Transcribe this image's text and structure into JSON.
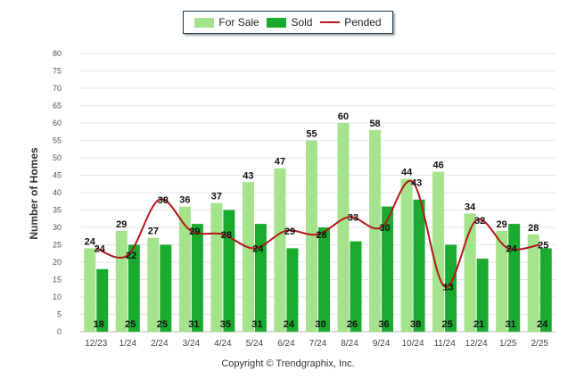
{
  "chart_data": {
    "type": "bar",
    "categories": [
      "12/23",
      "1/24",
      "2/24",
      "3/24",
      "4/24",
      "5/24",
      "6/24",
      "7/24",
      "8/24",
      "9/24",
      "10/24",
      "11/24",
      "12/24",
      "1/25",
      "2/25"
    ],
    "series": [
      {
        "name": "For Sale",
        "type": "bar",
        "color": "#a4e28b",
        "values": [
          24,
          29,
          27,
          36,
          37,
          43,
          47,
          55,
          60,
          58,
          44,
          46,
          34,
          29,
          28
        ]
      },
      {
        "name": "Sold",
        "type": "bar",
        "color": "#1aab2e",
        "values": [
          18,
          25,
          25,
          31,
          35,
          31,
          24,
          30,
          26,
          36,
          38,
          25,
          21,
          31,
          24
        ]
      },
      {
        "name": "Pended",
        "type": "line",
        "color": "#b5161b",
        "values": [
          24,
          22,
          38,
          29,
          28,
          24,
          29,
          28,
          33,
          30,
          43,
          13,
          32,
          24,
          25
        ]
      }
    ],
    "ylabel": "Number of Homes",
    "xlabel": "",
    "ylim": [
      0,
      80
    ],
    "yticks": [
      0,
      5,
      10,
      15,
      20,
      25,
      30,
      35,
      40,
      45,
      50,
      55,
      60,
      65,
      70,
      75,
      80
    ],
    "grid": true,
    "legend_position": "top-center"
  },
  "legend": {
    "for_sale": "For Sale",
    "sold": "Sold",
    "pended": "Pended"
  },
  "footer": {
    "copyright": "Copyright © Trendgraphix, Inc."
  }
}
